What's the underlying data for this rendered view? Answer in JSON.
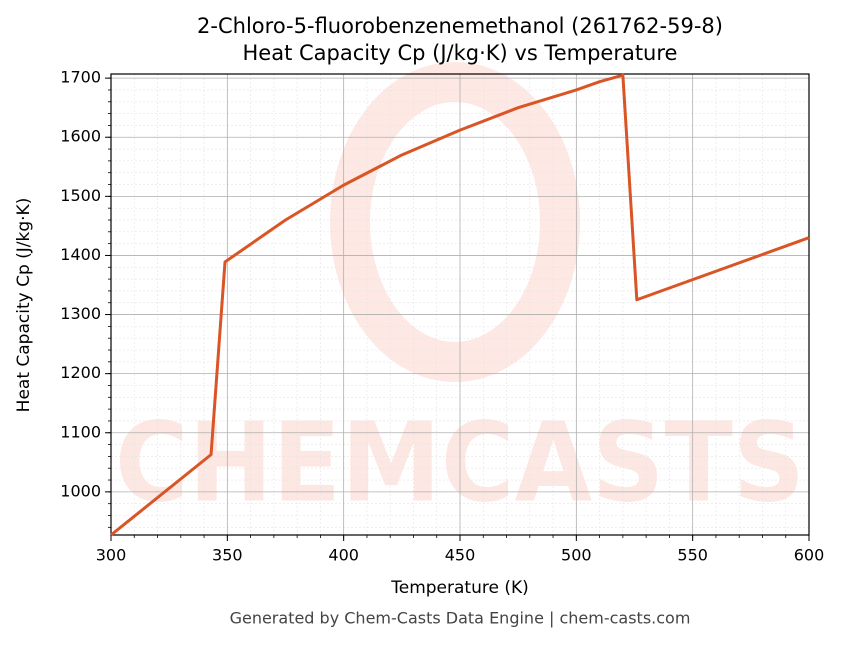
{
  "chart_data": {
    "type": "line",
    "title": "2-Chloro-5-fluorobenzenemethanol (261762-59-8)",
    "subtitle": "Heat Capacity Cp (J/kg·K) vs Temperature",
    "x_label": "Temperature (K)",
    "y_label": "Heat Capacity Cp (J/kg·K)",
    "footer": "Generated by Chem-Casts Data Engine | chem-casts.com",
    "watermark": "CHEMCASTS",
    "x": [
      300,
      343,
      349,
      375,
      400,
      425,
      450,
      475,
      500,
      510,
      520,
      526,
      600
    ],
    "series": [
      {
        "name": "Cp",
        "color": "#d95525",
        "values": [
          927,
          1063,
          1389,
          1460,
          1519,
          1570,
          1612,
          1650,
          1680,
          1694,
          1705,
          1325,
          1430
        ]
      }
    ],
    "xlim": [
      300,
      600
    ],
    "xticks": [
      300,
      350,
      400,
      450,
      500,
      550,
      600
    ],
    "ylim": [
      927,
      1707
    ],
    "yticks": [
      1000,
      1100,
      1200,
      1300,
      1400,
      1500,
      1600,
      1700
    ],
    "grid": true,
    "minor_grid": true
  }
}
